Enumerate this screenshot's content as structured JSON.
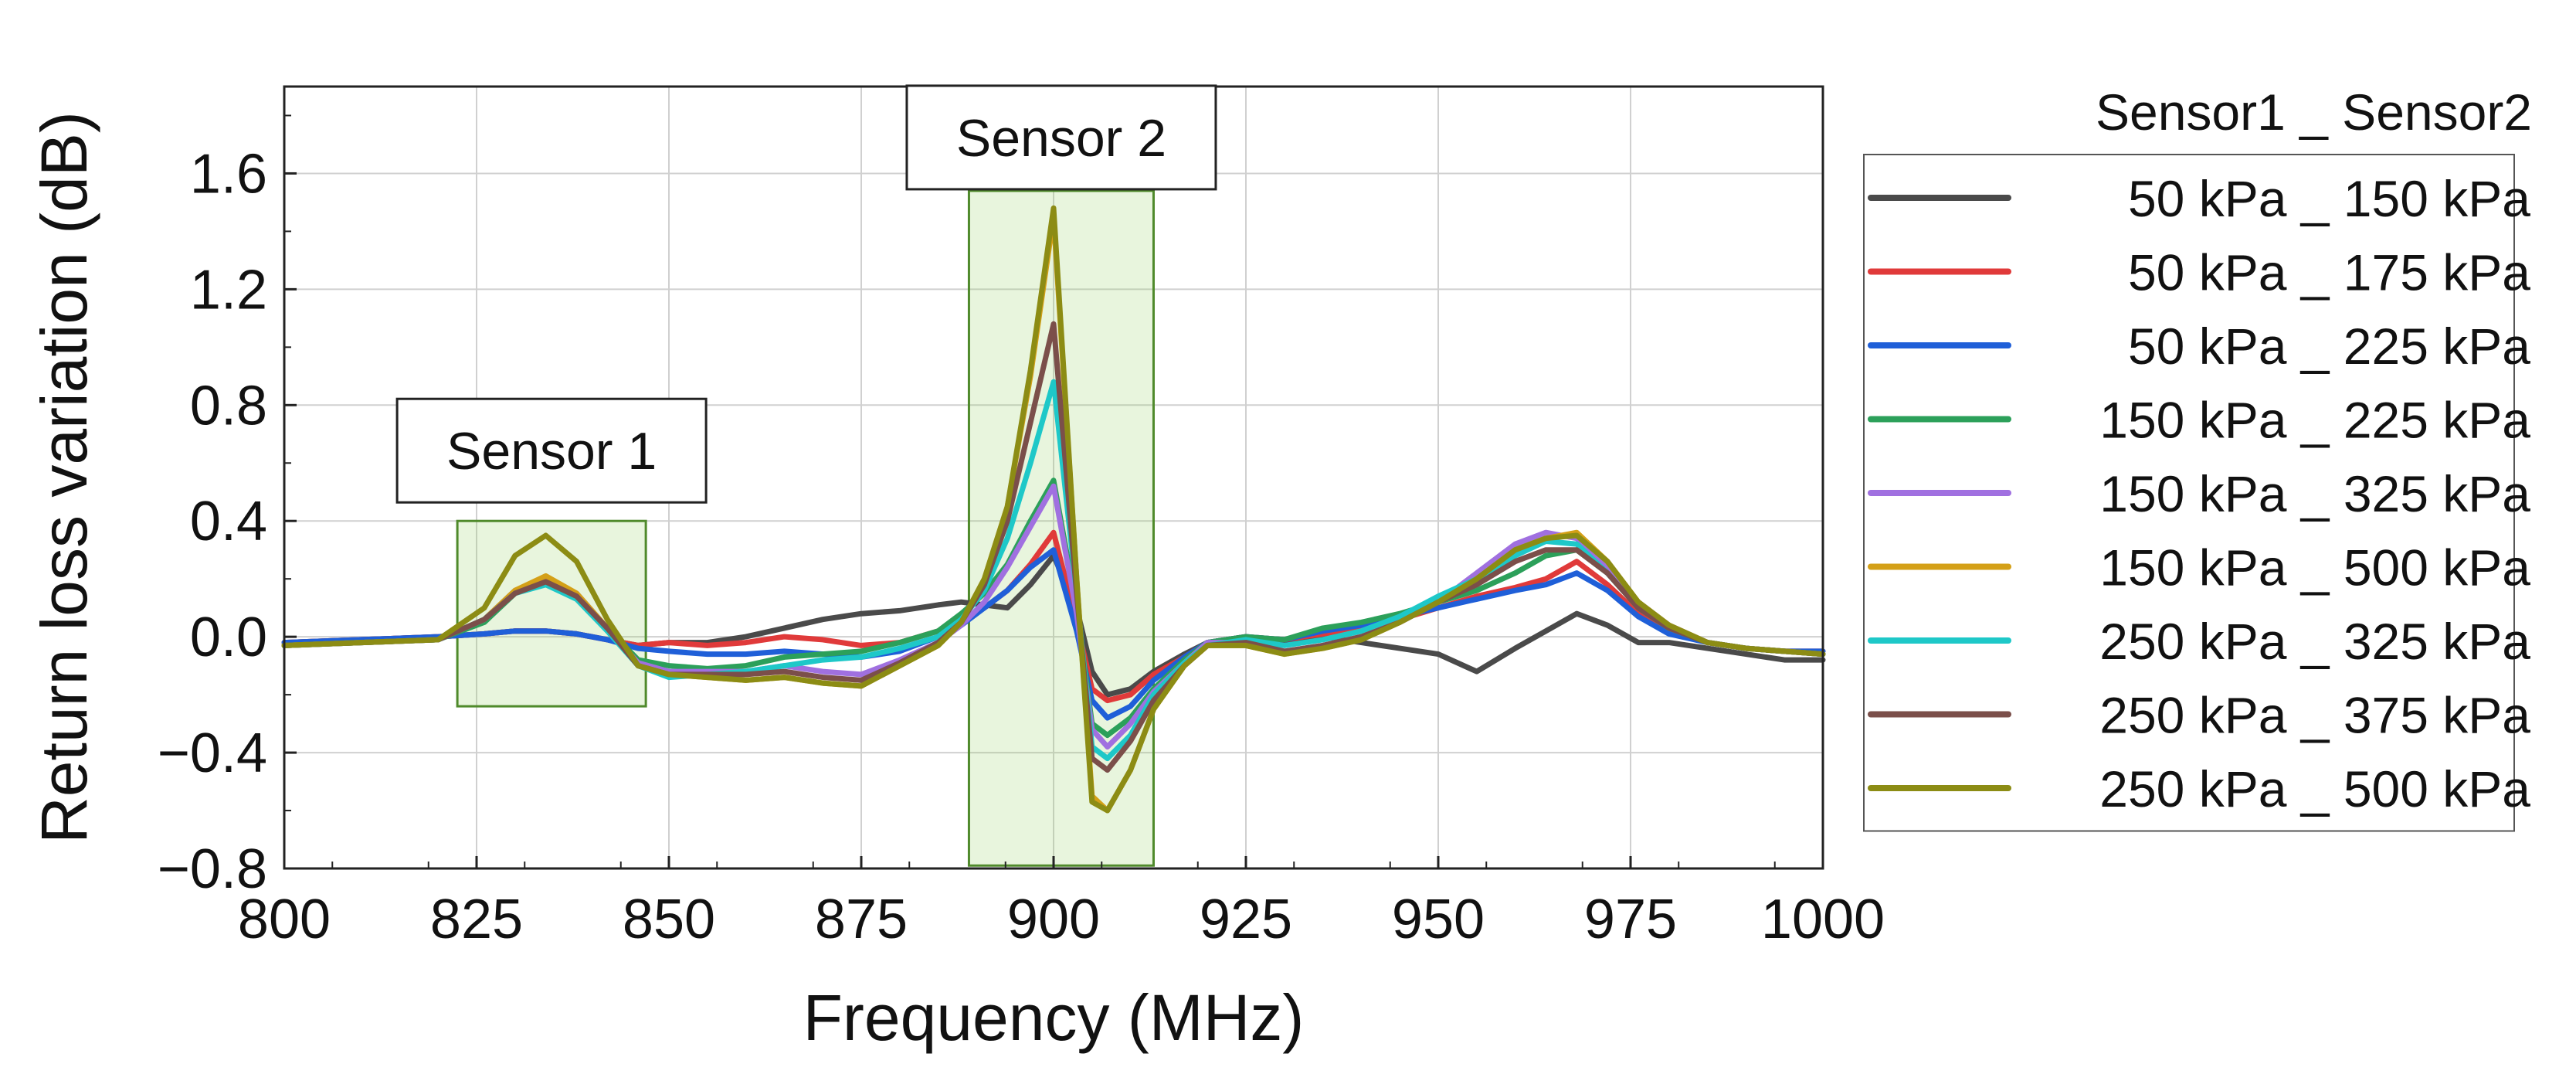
{
  "chart_data": {
    "type": "line",
    "title": "",
    "xlabel": "Frequency (MHz)",
    "ylabel": "Return loss variation (dB)",
    "xlim": [
      800,
      1000
    ],
    "ylim": [
      -0.8,
      1.9
    ],
    "xticks": [
      800,
      825,
      850,
      875,
      900,
      925,
      950,
      975,
      1000
    ],
    "xtick_labels": [
      "800",
      "825",
      "850",
      "875",
      "900",
      "925",
      "950",
      "975",
      "1000"
    ],
    "yticks": [
      -0.8,
      -0.4,
      0.0,
      0.4,
      0.8,
      1.2,
      1.6
    ],
    "ytick_labels": [
      "−0.8",
      "−0.4",
      "0.0",
      "0.4",
      "0.8",
      "1.2",
      "1.6"
    ],
    "grid": true,
    "legend_title": "Sensor1 _ Sensor2",
    "legend_position": "outside-right",
    "annotations": [
      {
        "label": "Sensor 1",
        "x_range": [
          822.5,
          847
        ],
        "y_range": [
          -0.24,
          0.4
        ]
      },
      {
        "label": "Sensor 2",
        "x_range": [
          889,
          913
        ],
        "y_range": [
          -0.79,
          1.54
        ]
      }
    ],
    "x": [
      800,
      810,
      820,
      826,
      830,
      834,
      838,
      842,
      846,
      850,
      855,
      860,
      865,
      870,
      875,
      880,
      885,
      888,
      891,
      894,
      897,
      900,
      903,
      905,
      907,
      910,
      913,
      917,
      920,
      925,
      930,
      935,
      940,
      945,
      950,
      955,
      960,
      964,
      968,
      972,
      976,
      980,
      985,
      990,
      995,
      1000
    ],
    "series": [
      {
        "name": "50 kPa _ 150 kPa",
        "color": "#4a4a4a",
        "values": [
          -0.02,
          -0.01,
          0.0,
          0.01,
          0.02,
          0.02,
          0.01,
          -0.01,
          -0.03,
          -0.02,
          -0.02,
          0.0,
          0.03,
          0.06,
          0.08,
          0.09,
          0.11,
          0.12,
          0.11,
          0.1,
          0.18,
          0.28,
          0.1,
          -0.12,
          -0.2,
          -0.18,
          -0.12,
          -0.06,
          -0.02,
          0.0,
          -0.02,
          0.0,
          -0.02,
          -0.04,
          -0.06,
          -0.12,
          -0.04,
          0.02,
          0.08,
          0.04,
          -0.02,
          -0.02,
          -0.04,
          -0.06,
          -0.08,
          -0.08
        ]
      },
      {
        "name": "50 kPa _ 175 kPa",
        "color": "#e03a3a",
        "values": [
          -0.02,
          -0.01,
          0.0,
          0.01,
          0.02,
          0.02,
          0.01,
          -0.01,
          -0.03,
          -0.02,
          -0.03,
          -0.02,
          0.0,
          -0.01,
          -0.03,
          -0.02,
          0.02,
          0.06,
          0.1,
          0.16,
          0.25,
          0.36,
          0.05,
          -0.18,
          -0.22,
          -0.2,
          -0.13,
          -0.07,
          -0.02,
          0.0,
          -0.01,
          0.01,
          0.03,
          0.06,
          0.1,
          0.14,
          0.17,
          0.2,
          0.26,
          0.18,
          0.08,
          0.02,
          -0.02,
          -0.04,
          -0.05,
          -0.05
        ]
      },
      {
        "name": "50 kPa _ 225 kPa",
        "color": "#1f5fd8",
        "values": [
          -0.02,
          -0.01,
          0.0,
          0.01,
          0.02,
          0.02,
          0.01,
          -0.01,
          -0.04,
          -0.05,
          -0.06,
          -0.06,
          -0.05,
          -0.06,
          -0.07,
          -0.05,
          0.0,
          0.04,
          0.1,
          0.16,
          0.24,
          0.3,
          0.02,
          -0.22,
          -0.28,
          -0.24,
          -0.15,
          -0.07,
          -0.02,
          0.0,
          -0.01,
          0.02,
          0.04,
          0.07,
          0.1,
          0.13,
          0.16,
          0.18,
          0.22,
          0.16,
          0.07,
          0.01,
          -0.02,
          -0.04,
          -0.05,
          -0.05
        ]
      },
      {
        "name": "150 kPa _ 225 kPa",
        "color": "#2ca05a",
        "values": [
          -0.03,
          -0.02,
          -0.01,
          0.05,
          0.15,
          0.19,
          0.14,
          0.03,
          -0.08,
          -0.1,
          -0.11,
          -0.1,
          -0.07,
          -0.06,
          -0.05,
          -0.02,
          0.02,
          0.08,
          0.15,
          0.25,
          0.4,
          0.54,
          0.1,
          -0.3,
          -0.34,
          -0.28,
          -0.18,
          -0.08,
          -0.02,
          0.0,
          -0.01,
          0.03,
          0.05,
          0.08,
          0.12,
          0.16,
          0.22,
          0.28,
          0.3,
          0.22,
          0.1,
          0.03,
          -0.02,
          -0.04,
          -0.05,
          -0.06
        ]
      },
      {
        "name": "150 kPa _ 325 kPa",
        "color": "#a070e0",
        "values": [
          -0.03,
          -0.02,
          -0.01,
          0.06,
          0.16,
          0.2,
          0.15,
          0.03,
          -0.09,
          -0.12,
          -0.12,
          -0.12,
          -0.1,
          -0.12,
          -0.13,
          -0.08,
          -0.02,
          0.04,
          0.12,
          0.24,
          0.38,
          0.52,
          0.08,
          -0.32,
          -0.38,
          -0.3,
          -0.19,
          -0.09,
          -0.02,
          -0.02,
          -0.05,
          -0.03,
          0.0,
          0.05,
          0.12,
          0.22,
          0.32,
          0.36,
          0.34,
          0.24,
          0.12,
          0.04,
          -0.02,
          -0.04,
          -0.05,
          -0.06
        ]
      },
      {
        "name": "150 kPa _ 500 kPa",
        "color": "#d4a017",
        "values": [
          -0.03,
          -0.02,
          -0.01,
          0.06,
          0.16,
          0.21,
          0.15,
          0.03,
          -0.1,
          -0.13,
          -0.14,
          -0.15,
          -0.14,
          -0.16,
          -0.17,
          -0.1,
          -0.03,
          0.05,
          0.2,
          0.45,
          0.9,
          1.45,
          0.2,
          -0.55,
          -0.6,
          -0.46,
          -0.25,
          -0.1,
          -0.03,
          -0.03,
          -0.06,
          -0.04,
          -0.01,
          0.05,
          0.12,
          0.2,
          0.3,
          0.34,
          0.36,
          0.26,
          0.12,
          0.04,
          -0.02,
          -0.04,
          -0.05,
          -0.06
        ]
      },
      {
        "name": "250 kPa _ 325 kPa",
        "color": "#1ec8c8",
        "values": [
          -0.03,
          -0.02,
          -0.01,
          0.06,
          0.15,
          0.18,
          0.13,
          0.02,
          -0.1,
          -0.14,
          -0.13,
          -0.12,
          -0.1,
          -0.08,
          -0.07,
          -0.04,
          0.0,
          0.06,
          0.16,
          0.34,
          0.6,
          0.88,
          0.15,
          -0.38,
          -0.42,
          -0.34,
          -0.2,
          -0.09,
          -0.03,
          -0.01,
          -0.03,
          -0.01,
          0.02,
          0.07,
          0.14,
          0.2,
          0.28,
          0.33,
          0.32,
          0.22,
          0.1,
          0.03,
          -0.02,
          -0.04,
          -0.05,
          -0.06
        ]
      },
      {
        "name": "250 kPa _ 375 kPa",
        "color": "#7b4f4a",
        "values": [
          -0.03,
          -0.02,
          -0.01,
          0.06,
          0.15,
          0.19,
          0.14,
          0.03,
          -0.1,
          -0.13,
          -0.13,
          -0.13,
          -0.12,
          -0.14,
          -0.15,
          -0.09,
          -0.02,
          0.05,
          0.18,
          0.4,
          0.74,
          1.08,
          0.15,
          -0.42,
          -0.46,
          -0.36,
          -0.22,
          -0.1,
          -0.03,
          -0.02,
          -0.05,
          -0.03,
          0.0,
          0.05,
          0.12,
          0.18,
          0.26,
          0.3,
          0.3,
          0.22,
          0.1,
          0.03,
          -0.02,
          -0.04,
          -0.05,
          -0.06
        ]
      },
      {
        "name": "250 kPa _ 500 kPa",
        "color": "#8c8c14",
        "values": [
          -0.03,
          -0.02,
          -0.01,
          0.1,
          0.28,
          0.35,
          0.26,
          0.06,
          -0.1,
          -0.13,
          -0.14,
          -0.15,
          -0.14,
          -0.16,
          -0.17,
          -0.1,
          -0.03,
          0.05,
          0.2,
          0.45,
          0.92,
          1.48,
          0.2,
          -0.57,
          -0.6,
          -0.46,
          -0.25,
          -0.1,
          -0.03,
          -0.03,
          -0.06,
          -0.04,
          -0.01,
          0.05,
          0.12,
          0.2,
          0.3,
          0.34,
          0.35,
          0.26,
          0.12,
          0.04,
          -0.02,
          -0.04,
          -0.05,
          -0.06
        ]
      }
    ]
  }
}
